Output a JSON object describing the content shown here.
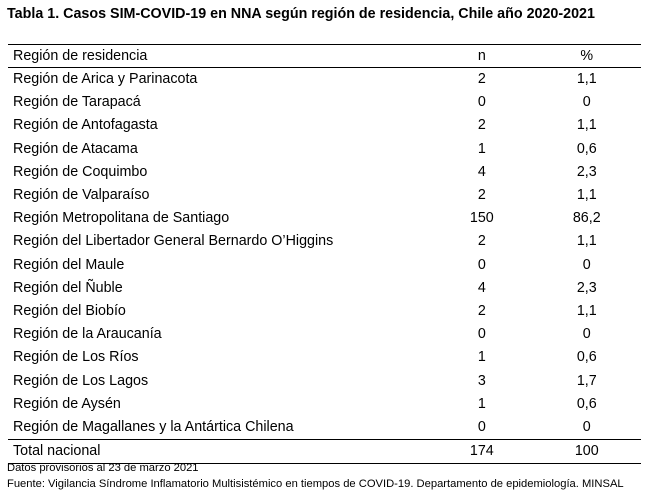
{
  "title": "Tabla 1. Casos SIM-COVID-19 en NNA según región de residencia, Chile año 2020-2021",
  "table": {
    "headers": [
      "Región de residencia",
      "n",
      "%"
    ],
    "rows": [
      {
        "region": "Región de Arica y Parinacota",
        "n": "2",
        "pct": "1,1"
      },
      {
        "region": "Región de Tarapacá",
        "n": "0",
        "pct": "0"
      },
      {
        "region": "Región de Antofagasta",
        "n": "2",
        "pct": "1,1"
      },
      {
        "region": "Región de Atacama",
        "n": "1",
        "pct": "0,6"
      },
      {
        "region": "Región de Coquimbo",
        "n": "4",
        "pct": "2,3"
      },
      {
        "region": "Región de Valparaíso",
        "n": "2",
        "pct": "1,1"
      },
      {
        "region": "Región Metropolitana de Santiago",
        "n": "150",
        "pct": "86,2"
      },
      {
        "region": "Región del Libertador General Bernardo O’Higgins",
        "n": "2",
        "pct": "1,1"
      },
      {
        "region": "Región del Maule",
        "n": "0",
        "pct": "0"
      },
      {
        "region": "Región del Ñuble",
        "n": "4",
        "pct": "2,3"
      },
      {
        "region": "Región del Biobío",
        "n": "2",
        "pct": "1,1"
      },
      {
        "region": "Región de la Araucanía",
        "n": "0",
        "pct": "0"
      },
      {
        "region": "Región de Los Ríos",
        "n": "1",
        "pct": "0,6"
      },
      {
        "region": "Región de Los Lagos",
        "n": "3",
        "pct": "1,7"
      },
      {
        "region": "Región de Aysén",
        "n": "1",
        "pct": "0,6"
      },
      {
        "region": "Región de Magallanes y la Antártica Chilena",
        "n": "0",
        "pct": "0"
      }
    ],
    "total": {
      "region": "Total nacional",
      "n": "174",
      "pct": "100"
    }
  },
  "notes": {
    "provisional": "Datos provisorios al 23 de marzo 2021",
    "source": "Fuente: Vigilancia Síndrome Inflamatorio Multisistémico en tiempos de COVID-19. Departamento de epidemiología. MINSAL"
  }
}
